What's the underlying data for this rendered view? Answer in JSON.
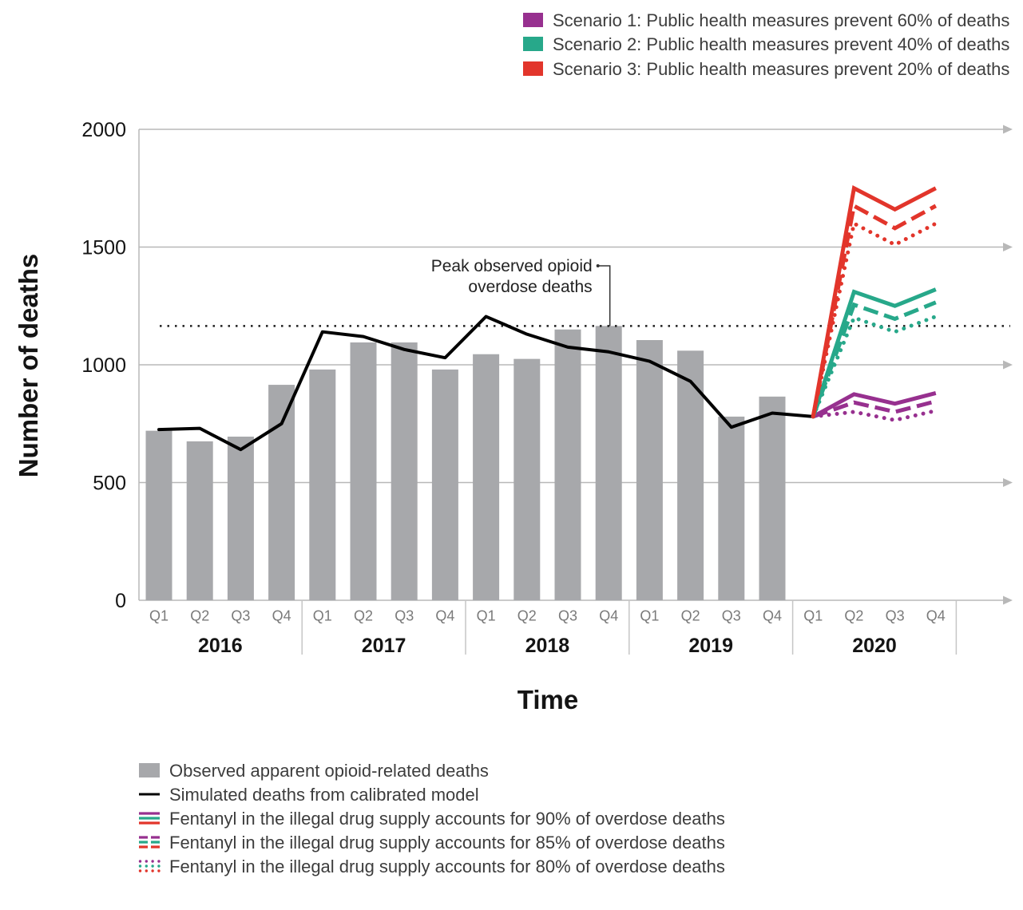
{
  "chart_data": {
    "type": "bar",
    "xlabel": "Time",
    "ylabel": "Number of deaths",
    "ylim": [
      0,
      2000
    ],
    "yticks": [
      0,
      500,
      1000,
      1500,
      2000
    ],
    "x_axis": {
      "years": [
        {
          "label": "2016",
          "quarters": [
            "Q1",
            "Q2",
            "Q3",
            "Q4"
          ]
        },
        {
          "label": "2017",
          "quarters": [
            "Q1",
            "Q2",
            "Q3",
            "Q4"
          ]
        },
        {
          "label": "2018",
          "quarters": [
            "Q1",
            "Q2",
            "Q3",
            "Q4"
          ]
        },
        {
          "label": "2019",
          "quarters": [
            "Q1",
            "Q2",
            "Q3",
            "Q4"
          ]
        },
        {
          "label": "2020",
          "quarters": [
            "Q1",
            "Q2",
            "Q3",
            "Q4"
          ]
        }
      ]
    },
    "observed": {
      "name": "Observed apparent opioid-related deaths",
      "type": "bar",
      "color": "#a7a8ab",
      "values": [
        720,
        675,
        695,
        915,
        980,
        1095,
        1095,
        980,
        1045,
        1025,
        1150,
        1165,
        1105,
        1060,
        780,
        865
      ]
    },
    "simulated": {
      "name": "Simulated deaths from calibrated model",
      "type": "line",
      "color": "#000000",
      "values": [
        725,
        730,
        640,
        750,
        1140,
        1120,
        1065,
        1030,
        1205,
        1130,
        1075,
        1055,
        1015,
        930,
        735,
        795,
        780
      ]
    },
    "reference_line": {
      "value": 1165,
      "label": [
        "Peak observed opioid",
        "overdose deaths"
      ]
    },
    "fentanyl_levels": [
      "Fentanyl in the illegal drug supply accounts for 90% of overdose deaths",
      "Fentanyl in the illegal drug supply accounts for 85% of overdose deaths",
      "Fentanyl in the illegal drug supply accounts for 80% of overdose deaths"
    ],
    "scenarios": [
      {
        "name": "Scenario 1: Public health measures prevent 60% of deaths",
        "color": "#97308f",
        "projections": [
          [
            780,
            875,
            835,
            880
          ],
          [
            780,
            840,
            800,
            845
          ],
          [
            780,
            800,
            765,
            805
          ]
        ]
      },
      {
        "name": "Scenario 2: Public health measures prevent 40% of deaths",
        "color": "#27a88a",
        "projections": [
          [
            780,
            1310,
            1250,
            1320
          ],
          [
            780,
            1255,
            1195,
            1265
          ],
          [
            780,
            1200,
            1140,
            1205
          ]
        ]
      },
      {
        "name": "Scenario 3: Public health measures prevent 20% of deaths",
        "color": "#e2352b",
        "projections": [
          [
            780,
            1750,
            1660,
            1750
          ],
          [
            780,
            1675,
            1580,
            1675
          ],
          [
            780,
            1600,
            1510,
            1600
          ]
        ]
      }
    ]
  }
}
